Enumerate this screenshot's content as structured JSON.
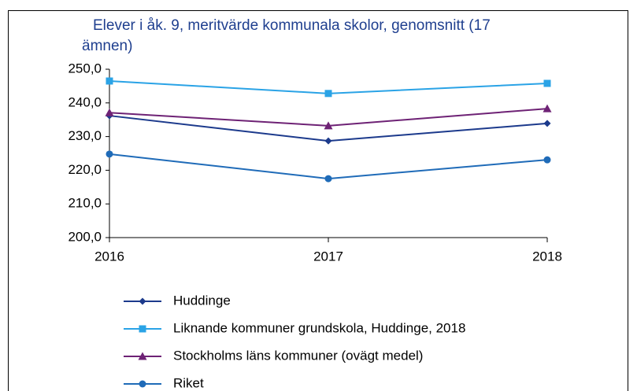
{
  "chart_data": {
    "type": "line",
    "title": "Elever i åk. 9, meritvärde kommunala skolor, genomsnitt (17 ämnen)",
    "categories": [
      "2016",
      "2017",
      "2018"
    ],
    "series": [
      {
        "name": "Huddinge",
        "color": "#1c3a8c",
        "marker": "diamond",
        "values": [
          236.2,
          228.7,
          233.9
        ]
      },
      {
        "name": "Liknande kommuner grundskola, Huddinge, 2018",
        "color": "#2aa3e6",
        "marker": "square",
        "values": [
          246.5,
          242.8,
          245.8
        ]
      },
      {
        "name": "Stockholms läns kommuner (ovägt medel)",
        "color": "#6e2275",
        "marker": "triangle",
        "values": [
          237.1,
          233.2,
          238.3
        ]
      },
      {
        "name": "Riket",
        "color": "#1f6bb8",
        "marker": "circle",
        "values": [
          224.8,
          217.5,
          223.1
        ]
      }
    ],
    "ylim": [
      200,
      250
    ],
    "yticks": [
      {
        "value": 200,
        "label": "200,0"
      },
      {
        "value": 210,
        "label": "210,0"
      },
      {
        "value": 220,
        "label": "220,0"
      },
      {
        "value": 230,
        "label": "230,0"
      },
      {
        "value": 240,
        "label": "240,0"
      },
      {
        "value": 250,
        "label": "250,0"
      }
    ],
    "legend": "bottom"
  }
}
